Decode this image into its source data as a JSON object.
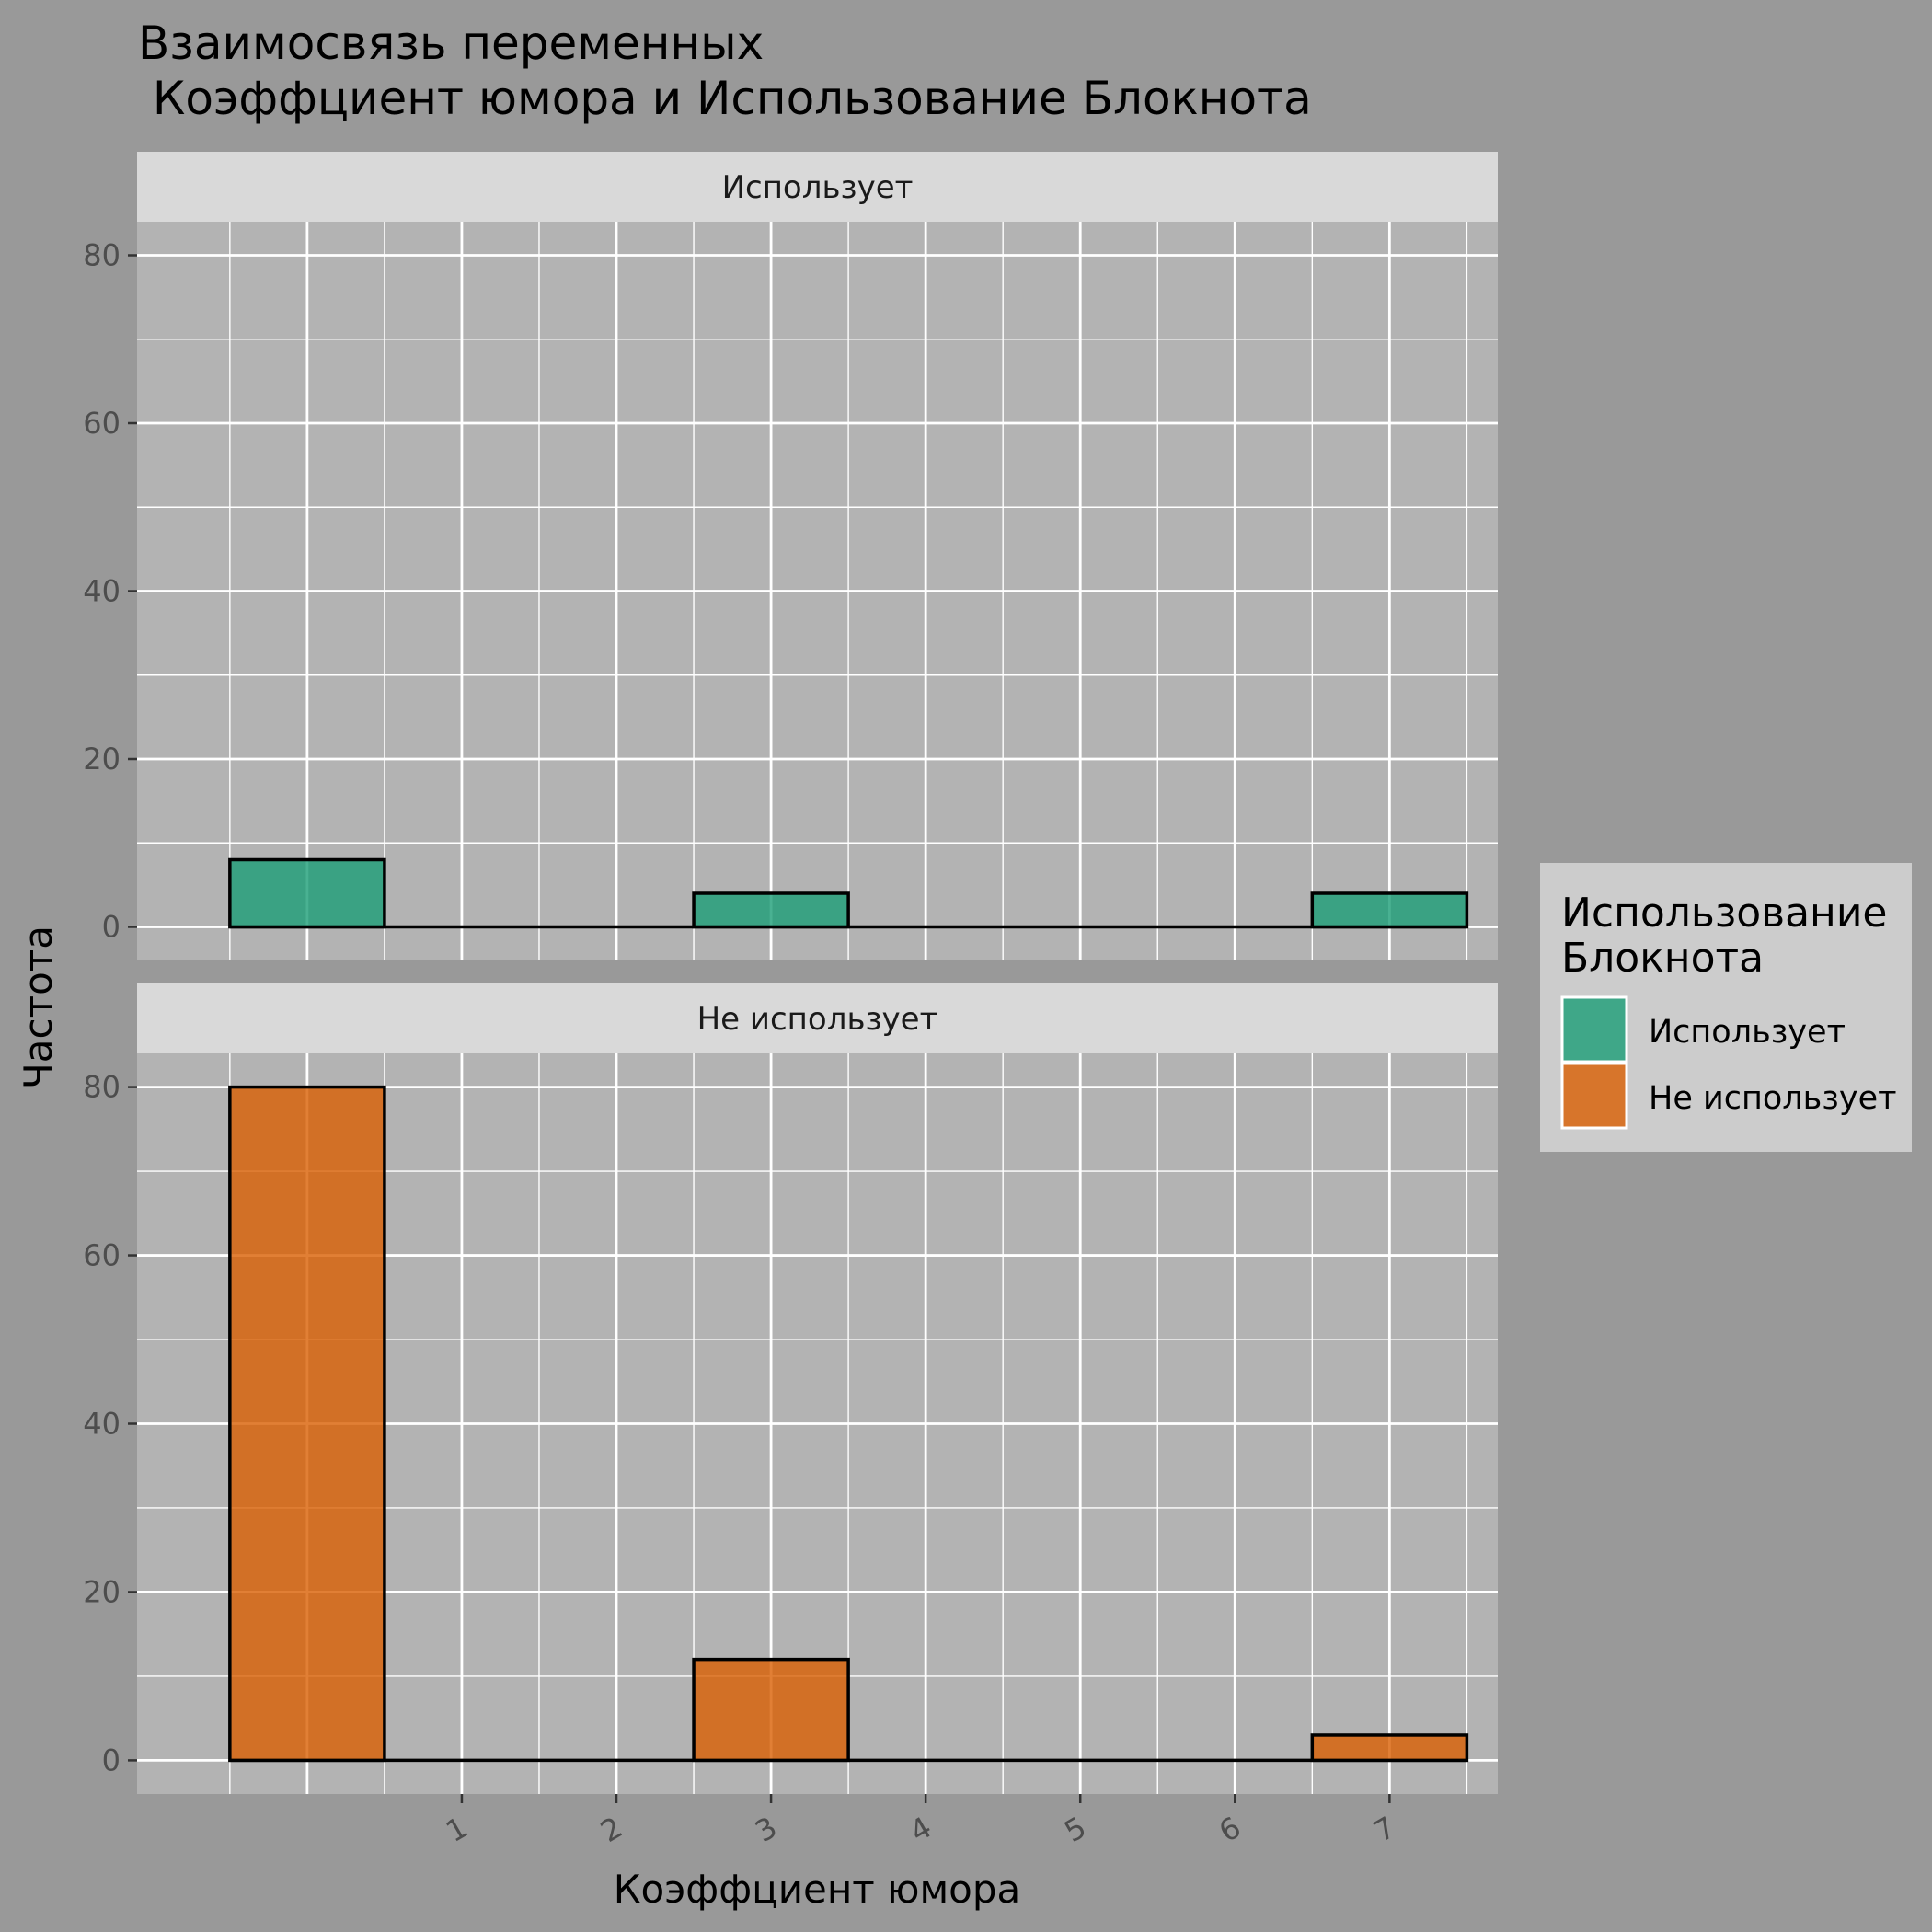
{
  "chart_data": {
    "type": "bar",
    "title_lines": [
      "Взаимосвязь переменных",
      " Коэффциент юмора и Использование Блокнота"
    ],
    "xlabel": "Коэффциент юмора",
    "ylabel": "Частота",
    "x_ticks": [
      1,
      2,
      3,
      4,
      5,
      6,
      7
    ],
    "xlim": [
      -1.1,
      7.7
    ],
    "ylim": [
      -4,
      84
    ],
    "y_ticks": [
      0,
      20,
      40,
      60,
      80
    ],
    "grid": true,
    "bin_width": 1,
    "bin_centers": [
      0,
      3,
      7
    ],
    "legend": {
      "title_lines": [
        "Использование",
        "Блокнота"
      ],
      "placement": "right"
    },
    "series": [
      {
        "name": "Использует",
        "color": "#1b9e77",
        "values": [
          8,
          4,
          4
        ]
      },
      {
        "name": "Не использует",
        "color": "#d95f02",
        "values": [
          80,
          12,
          3
        ]
      }
    ]
  }
}
